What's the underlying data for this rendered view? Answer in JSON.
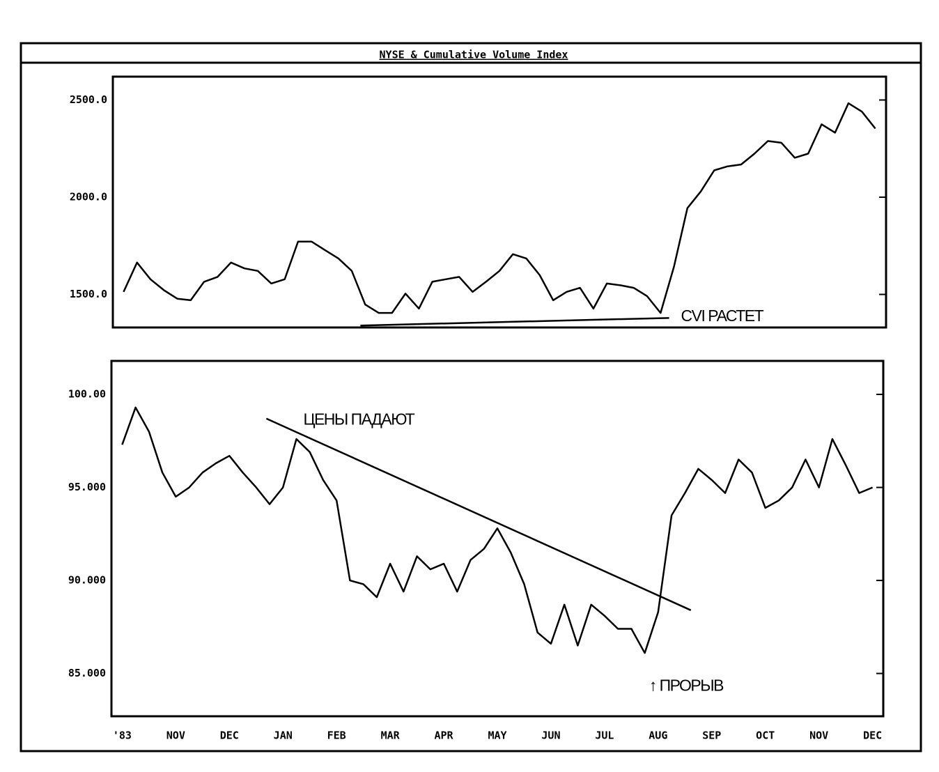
{
  "title": "NYSE & Cumulative Volume Index",
  "chart_data": [
    {
      "type": "line",
      "xlim": [
        -0.2,
        14.2
      ],
      "ylim": [
        1330,
        2620
      ],
      "yticks": [
        {
          "value": 1500,
          "label": "1500.0"
        },
        {
          "value": 2000,
          "label": "2000.0"
        },
        {
          "value": 2500,
          "label": "2500.0"
        }
      ],
      "x": [
        0,
        0.25,
        0.5,
        0.75,
        1,
        1.25,
        1.5,
        1.75,
        2,
        2.25,
        2.5,
        2.75,
        3,
        3.25,
        3.5,
        3.75,
        4,
        4.25,
        4.5,
        4.75,
        5,
        5.25,
        5.5,
        5.75,
        6,
        6.25,
        6.5,
        6.75,
        7,
        7.25,
        7.5,
        7.75,
        8,
        8.25,
        8.5,
        8.75,
        9,
        9.25,
        9.5,
        9.75,
        10,
        10.25,
        10.5,
        10.75,
        11,
        11.25,
        11.5,
        11.75,
        12,
        12.25,
        12.5,
        12.75,
        13,
        13.25,
        13.5,
        13.75,
        14
      ],
      "series": [
        {
          "color": "#000000",
          "values": [
            1513,
            1664,
            1578,
            1522,
            1478,
            1470,
            1565,
            1590,
            1664,
            1634,
            1621,
            1556,
            1578,
            1772,
            1772,
            1728,
            1685,
            1621,
            1448,
            1405,
            1405,
            1504,
            1427,
            1565,
            1578,
            1590,
            1513,
            1565,
            1621,
            1707,
            1685,
            1599,
            1470,
            1513,
            1534,
            1427,
            1556,
            1547,
            1534,
            1491,
            1405,
            1642,
            1944,
            2030,
            2138,
            2159,
            2168,
            2224,
            2289,
            2280,
            2203,
            2224,
            2375,
            2332,
            2483,
            2440,
            2353
          ]
        }
      ],
      "trendline": {
        "x": [
          4.41,
          10.16
        ],
        "y": [
          1340,
          1379
        ]
      },
      "annotations": [
        {
          "text": "CVI РАСТЕТ",
          "x": 10.38,
          "y": 1384
        }
      ]
    },
    {
      "type": "line",
      "xlim": [
        -0.2,
        14.2
      ],
      "ylim": [
        82.7,
        101.8
      ],
      "yticks": [
        {
          "value": 85,
          "label": "85.000"
        },
        {
          "value": 90,
          "label": "90.000"
        },
        {
          "value": 95,
          "label": "95.000"
        },
        {
          "value": 100,
          "label": "100.00"
        }
      ],
      "xticks": [
        {
          "value": 0,
          "label": "'83"
        },
        {
          "value": 1,
          "label": "NOV"
        },
        {
          "value": 2,
          "label": "DEC"
        },
        {
          "value": 3,
          "label": "JAN"
        },
        {
          "value": 4,
          "label": "FEB"
        },
        {
          "value": 5,
          "label": "MAR"
        },
        {
          "value": 6,
          "label": "APR"
        },
        {
          "value": 7,
          "label": "MAY"
        },
        {
          "value": 8,
          "label": "JUN"
        },
        {
          "value": 9,
          "label": "JUL"
        },
        {
          "value": 10,
          "label": "AUG"
        },
        {
          "value": 11,
          "label": "SEP"
        },
        {
          "value": 12,
          "label": "OCT"
        },
        {
          "value": 13,
          "label": "NOV"
        },
        {
          "value": 14,
          "label": "DEC"
        }
      ],
      "x": [
        0,
        0.25,
        0.5,
        0.75,
        1,
        1.25,
        1.5,
        1.75,
        2,
        2.25,
        2.5,
        2.75,
        3,
        3.25,
        3.5,
        3.75,
        4,
        4.25,
        4.5,
        4.75,
        5,
        5.25,
        5.5,
        5.75,
        6,
        6.25,
        6.5,
        6.75,
        7,
        7.25,
        7.5,
        7.75,
        8,
        8.25,
        8.5,
        8.75,
        9,
        9.25,
        9.5,
        9.75,
        10,
        10.25,
        10.5,
        10.75,
        11,
        11.25,
        11.5,
        11.75,
        12,
        12.25,
        12.5,
        12.75,
        13,
        13.25,
        13.5,
        13.75,
        14
      ],
      "series": [
        {
          "color": "#000000",
          "values": [
            97.3,
            99.3,
            98.0,
            95.8,
            94.5,
            95.0,
            95.8,
            96.3,
            96.7,
            95.8,
            95.0,
            94.1,
            95.0,
            97.6,
            96.9,
            95.4,
            94.3,
            90.0,
            89.8,
            89.1,
            90.9,
            89.4,
            91.3,
            90.6,
            90.9,
            89.4,
            91.1,
            91.7,
            92.8,
            91.5,
            89.8,
            87.2,
            86.6,
            88.7,
            86.5,
            88.7,
            88.1,
            87.4,
            87.4,
            86.1,
            88.3,
            93.5,
            94.7,
            96.0,
            95.4,
            94.7,
            96.5,
            95.8,
            93.9,
            94.3,
            95.0,
            96.5,
            95.0,
            97.6,
            96.2,
            94.7,
            95.0
          ]
        }
      ],
      "trendline": {
        "x": [
          2.69,
          10.61
        ],
        "y": [
          98.7,
          88.4
        ]
      },
      "annotations": [
        {
          "text": "ЦЕНЫ ПАДАЮТ",
          "x": 3.38,
          "y": 98.6
        },
        {
          "text": "↑ ПРОРЫВ",
          "x": 9.83,
          "y": 84.3
        }
      ]
    }
  ]
}
